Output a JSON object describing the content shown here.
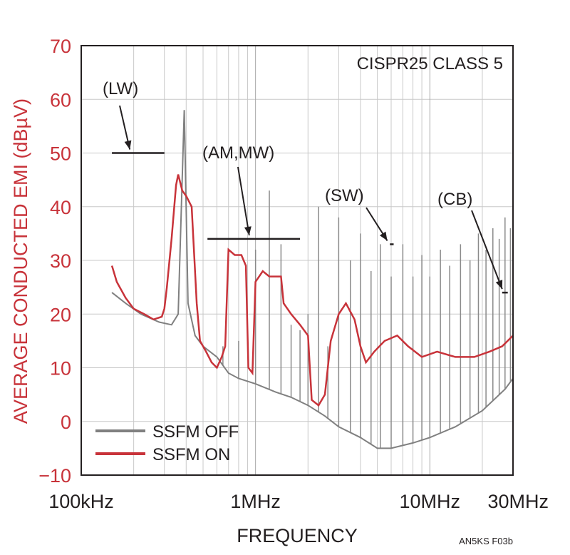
{
  "chart_data": {
    "type": "line",
    "title": "CISPR25 CLASS 5",
    "xlabel": "FREQUENCY",
    "ylabel": "AVERAGE CONDUCTED EMI (dBµV)",
    "x_scale": "log",
    "xlim_hz": [
      100000,
      30000000
    ],
    "ylim": [
      -10,
      70
    ],
    "y_ticks": [
      -10,
      0,
      10,
      20,
      30,
      40,
      50,
      60,
      70
    ],
    "y_tick_labels": [
      "−10",
      "0",
      "10",
      "20",
      "30",
      "40",
      "50",
      "60",
      "70"
    ],
    "x_ticks": [
      {
        "hz": 100000,
        "label": "100kHz"
      },
      {
        "hz": 1000000,
        "label": "1MHz"
      },
      {
        "hz": 10000000,
        "label": "10MHz"
      },
      {
        "hz": 30000000,
        "label": "30MHz"
      }
    ],
    "grid": true,
    "legend_position": "bottom-left",
    "colors": {
      "ssfm_off": "#808080",
      "ssfm_on": "#c8333a",
      "axis_text": "#c8333a"
    },
    "series": [
      {
        "name": "SSFM OFF",
        "color": "#808080",
        "points_hz_dbuv": [
          [
            150000,
            24
          ],
          [
            180000,
            22
          ],
          [
            220000,
            20
          ],
          [
            280000,
            18.5
          ],
          [
            330000,
            18
          ],
          [
            360000,
            20
          ],
          [
            390000,
            58
          ],
          [
            410000,
            22
          ],
          [
            450000,
            16
          ],
          [
            500000,
            14
          ],
          [
            600000,
            12
          ],
          [
            700000,
            9
          ],
          [
            800000,
            8
          ],
          [
            1000000,
            7
          ],
          [
            1300000,
            5.5
          ],
          [
            1600000,
            4.5
          ],
          [
            2000000,
            3
          ],
          [
            2500000,
            1
          ],
          [
            3000000,
            -1
          ],
          [
            4000000,
            -3
          ],
          [
            5000000,
            -5
          ],
          [
            6000000,
            -5
          ],
          [
            8000000,
            -4
          ],
          [
            10000000,
            -3
          ],
          [
            14000000,
            -1
          ],
          [
            20000000,
            2
          ],
          [
            27000000,
            6
          ],
          [
            30000000,
            8
          ]
        ],
        "spurs_hz_dbuv": [
          [
            650000,
            14
          ],
          [
            800000,
            15
          ],
          [
            1000000,
            32
          ],
          [
            1200000,
            43
          ],
          [
            1400000,
            33
          ],
          [
            1600000,
            18
          ],
          [
            1800000,
            17
          ],
          [
            2000000,
            20
          ],
          [
            2300000,
            40
          ],
          [
            2600000,
            14
          ],
          [
            3000000,
            38
          ],
          [
            3500000,
            30
          ],
          [
            4000000,
            35
          ],
          [
            4600000,
            28
          ],
          [
            5200000,
            33
          ],
          [
            6000000,
            27
          ],
          [
            7000000,
            33
          ],
          [
            8000000,
            27
          ],
          [
            9000000,
            31
          ],
          [
            10000000,
            27
          ],
          [
            11500000,
            32
          ],
          [
            13000000,
            29
          ],
          [
            15000000,
            33
          ],
          [
            17000000,
            30
          ],
          [
            19000000,
            35
          ],
          [
            21000000,
            32
          ],
          [
            23000000,
            36
          ],
          [
            25000000,
            34
          ],
          [
            27000000,
            38
          ],
          [
            29000000,
            36
          ]
        ]
      },
      {
        "name": "SSFM ON",
        "color": "#c8333a",
        "points_hz_dbuv": [
          [
            150000,
            29
          ],
          [
            160000,
            26
          ],
          [
            180000,
            23
          ],
          [
            200000,
            21
          ],
          [
            230000,
            20
          ],
          [
            260000,
            19
          ],
          [
            290000,
            19.5
          ],
          [
            300000,
            21
          ],
          [
            310000,
            25
          ],
          [
            330000,
            34
          ],
          [
            350000,
            44
          ],
          [
            360000,
            46
          ],
          [
            380000,
            43
          ],
          [
            400000,
            42
          ],
          [
            430000,
            40
          ],
          [
            460000,
            22
          ],
          [
            480000,
            15
          ],
          [
            520000,
            13
          ],
          [
            560000,
            11
          ],
          [
            600000,
            10
          ],
          [
            640000,
            12
          ],
          [
            670000,
            14
          ],
          [
            700000,
            32
          ],
          [
            760000,
            31
          ],
          [
            830000,
            31
          ],
          [
            880000,
            29
          ],
          [
            910000,
            10
          ],
          [
            960000,
            9
          ],
          [
            1000000,
            26
          ],
          [
            1100000,
            28
          ],
          [
            1200000,
            27
          ],
          [
            1300000,
            27
          ],
          [
            1400000,
            27
          ],
          [
            1450000,
            22
          ],
          [
            1600000,
            20
          ],
          [
            1800000,
            18
          ],
          [
            2000000,
            16
          ],
          [
            2100000,
            4
          ],
          [
            2300000,
            3
          ],
          [
            2500000,
            5
          ],
          [
            2700000,
            15
          ],
          [
            3000000,
            20
          ],
          [
            3300000,
            22
          ],
          [
            3700000,
            19
          ],
          [
            4000000,
            14
          ],
          [
            4300000,
            11
          ],
          [
            4800000,
            13
          ],
          [
            5500000,
            15
          ],
          [
            6500000,
            16
          ],
          [
            7500000,
            14
          ],
          [
            9000000,
            12
          ],
          [
            11000000,
            13
          ],
          [
            14000000,
            12
          ],
          [
            18000000,
            12
          ],
          [
            22000000,
            13
          ],
          [
            26000000,
            14
          ],
          [
            30000000,
            16
          ]
        ]
      }
    ],
    "annotations": [
      {
        "text": "(LW)",
        "arrow_to_hz": 190000,
        "arrow_to_dbuv": 50
      },
      {
        "text": "(AM,MW)",
        "arrow_to_hz": 920000,
        "arrow_to_dbuv": 34
      },
      {
        "text": "(SW)",
        "arrow_to_hz": 5700000,
        "arrow_to_dbuv": 33
      },
      {
        "text": "(CB)",
        "arrow_to_hz": 26000000,
        "arrow_to_dbuv": 24
      }
    ],
    "limit_lines": [
      {
        "band": "LW",
        "from_hz": 150000,
        "to_hz": 300000,
        "dbuv": 50
      },
      {
        "band": "AM,MW",
        "from_hz": 530000,
        "to_hz": 1800000,
        "dbuv": 34
      },
      {
        "band": "SW",
        "from_hz": 5900000,
        "to_hz": 6200000,
        "dbuv": 33
      },
      {
        "band": "CB",
        "from_hz": 26000000,
        "to_hz": 28000000,
        "dbuv": 24
      }
    ],
    "figure_id": "AN5KS F03b"
  }
}
